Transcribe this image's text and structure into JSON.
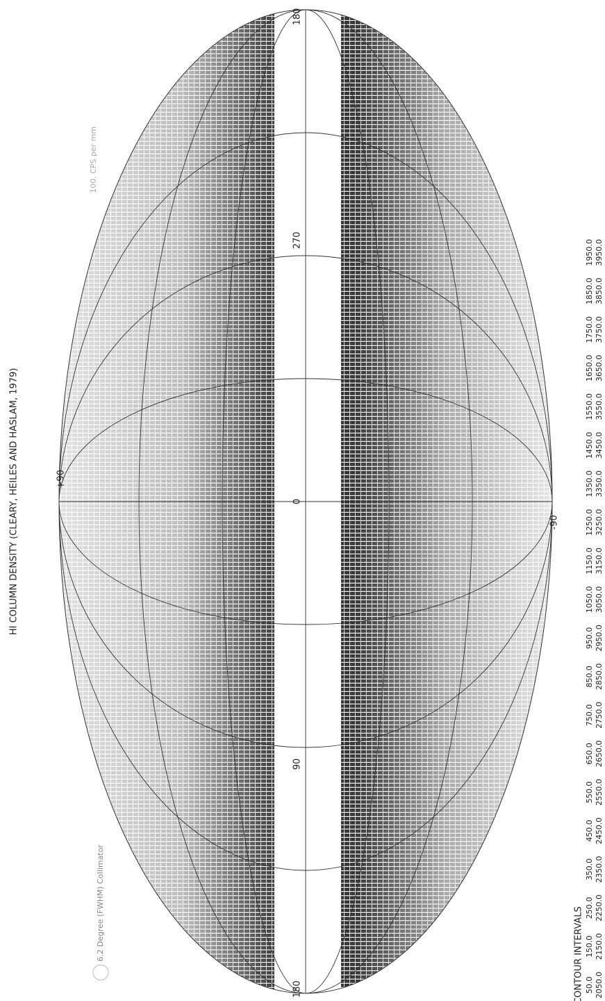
{
  "title": "HI COLUMN DENSITY (CLEARY, HEILES AND HASLAM, 1979)",
  "beam_note": "6.2  Degree (FWHM) Collimator",
  "scale_note": "100. CPS per mm",
  "longitude_labels": [
    "180",
    "270",
    "0",
    "90",
    "180"
  ],
  "latitude_labels": [
    "+90",
    "-90"
  ],
  "contour_title": "CONTOUR INTERVALS",
  "contour_intervals": {
    "row1": [
      "50.0",
      "150.0",
      "250.0",
      "350.0",
      "450.0",
      "550.0",
      "650.0",
      "750.0",
      "850.0",
      "950.0",
      "1050.0",
      "1150.0",
      "1250.0",
      "1350.0",
      "1450.0",
      "1550.0",
      "1650.0",
      "1750.0",
      "1850.0",
      "1950.0"
    ],
    "row2": [
      "2050.0",
      "2150.0",
      "2250.0",
      "2350.0",
      "2450.0",
      "2550.0",
      "2650.0",
      "2750.0",
      "2850.0",
      "2950.0",
      "3050.0",
      "3150.0",
      "3250.0",
      "3350.0",
      "3450.0",
      "3550.0",
      "3650.0",
      "3750.0",
      "3850.0",
      "3950.0"
    ]
  }
}
